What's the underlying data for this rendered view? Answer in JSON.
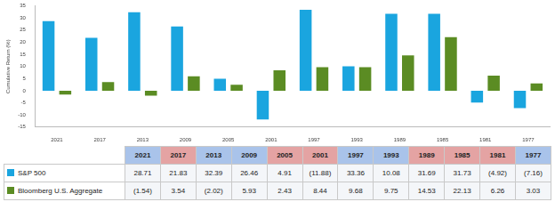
{
  "chart_data": {
    "type": "bar",
    "ylabel": "Cumulative Return (%)",
    "categories": [
      "2021",
      "2017",
      "2013",
      "2009",
      "2005",
      "2001",
      "1997",
      "1993",
      "1989",
      "1985",
      "1981",
      "1977"
    ],
    "series": [
      {
        "name": "S&P 500",
        "color": "#1aa5df",
        "values": [
          28.71,
          21.83,
          32.39,
          26.46,
          4.91,
          -11.88,
          33.36,
          10.08,
          31.69,
          31.73,
          -4.92,
          -7.16
        ],
        "value_labels": [
          "28.71",
          "21.83",
          "32.39",
          "26.46",
          "4.91",
          "(11.88)",
          "33.36",
          "10.08",
          "31.69",
          "31.73",
          "(4.92)",
          "(7.16)"
        ]
      },
      {
        "name": "Bloomberg U.S. Aggregate",
        "color": "#5b8c23",
        "values": [
          -1.54,
          3.54,
          -2.02,
          5.93,
          2.43,
          8.44,
          9.68,
          9.75,
          14.53,
          22.13,
          6.26,
          3.03
        ],
        "value_labels": [
          "(1.54)",
          "3.54",
          "(2.02)",
          "5.93",
          "2.43",
          "8.44",
          "9.68",
          "9.75",
          "14.53",
          "22.13",
          "6.26",
          "3.03"
        ]
      }
    ],
    "ylim": [
      -15,
      35
    ],
    "yticks": [
      -15,
      -10,
      -5,
      0,
      5,
      10,
      15,
      20,
      25,
      30,
      35
    ],
    "grid": false
  },
  "table": {
    "header_colors": [
      "#a9c3ea",
      "#e4a3a3",
      "#a9c3ea",
      "#a9c3ea",
      "#e4a3a3",
      "#e4a3a3",
      "#a9c3ea",
      "#a9c3ea",
      "#e4a3a3",
      "#e4a3a3",
      "#e4a3a3",
      "#a9c3ea"
    ]
  }
}
